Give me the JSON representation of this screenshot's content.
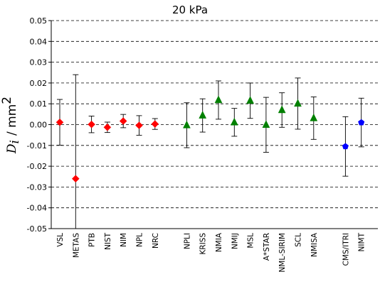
{
  "chart_data": {
    "type": "scatter",
    "title": "20 kPa",
    "ylabel_symbol": "D",
    "ylabel_subscript": "i",
    "ylabel_unit": "/ mm",
    "ylabel_unit_exponent": "2",
    "ylim": [
      -0.05,
      0.05
    ],
    "yticks": [
      -0.05,
      -0.04,
      -0.03,
      -0.02,
      -0.01,
      0.0,
      0.01,
      0.02,
      0.03,
      0.04,
      0.05
    ],
    "ytick_labels": [
      "-0.05",
      "-0.04",
      "-0.03",
      "-0.02",
      "-0.01",
      "0.00",
      "0.01",
      "0.02",
      "0.03",
      "0.04",
      "0.05"
    ],
    "grid": true,
    "colors": {
      "red": "#ff0000",
      "green": "#008000",
      "blue": "#0000ff"
    },
    "points": [
      {
        "label": "VSL",
        "slot": 0,
        "value": 0.0011,
        "err": 0.011,
        "marker": "diamond",
        "color": "#ff0000"
      },
      {
        "label": "METAS",
        "slot": 1,
        "value": -0.026,
        "err": 0.05,
        "marker": "diamond",
        "color": "#ff0000"
      },
      {
        "label": "PTB",
        "slot": 2,
        "value": 0.0001,
        "err": 0.004,
        "marker": "diamond",
        "color": "#ff0000"
      },
      {
        "label": "NIST",
        "slot": 3,
        "value": -0.0013,
        "err": 0.0025,
        "marker": "diamond",
        "color": "#ff0000"
      },
      {
        "label": "NIM",
        "slot": 4,
        "value": 0.0017,
        "err": 0.0032,
        "marker": "diamond",
        "color": "#ff0000"
      },
      {
        "label": "NPL",
        "slot": 5,
        "value": -0.0004,
        "err": 0.0047,
        "marker": "diamond",
        "color": "#ff0000"
      },
      {
        "label": "NRC",
        "slot": 6,
        "value": 0.0003,
        "err": 0.0026,
        "marker": "diamond",
        "color": "#ff0000"
      },
      {
        "label": "NPLI",
        "slot": 8,
        "value": -0.0003,
        "err": 0.0108,
        "marker": "triangle",
        "color": "#008000"
      },
      {
        "label": "KRISS",
        "slot": 9,
        "value": 0.0044,
        "err": 0.008,
        "marker": "triangle",
        "color": "#008000"
      },
      {
        "label": "NMIA",
        "slot": 10,
        "value": 0.0118,
        "err": 0.0092,
        "marker": "triangle",
        "color": "#008000"
      },
      {
        "label": "NMIJ",
        "slot": 11,
        "value": 0.0011,
        "err": 0.0067,
        "marker": "triangle",
        "color": "#008000"
      },
      {
        "label": "MSL",
        "slot": 12,
        "value": 0.0115,
        "err": 0.0085,
        "marker": "triangle",
        "color": "#008000"
      },
      {
        "label": "A*STAR",
        "slot": 13,
        "value": -0.0001,
        "err": 0.0132,
        "marker": "triangle",
        "color": "#008000"
      },
      {
        "label": "NML-SIRIM",
        "slot": 14,
        "value": 0.007,
        "err": 0.0083,
        "marker": "triangle",
        "color": "#008000"
      },
      {
        "label": "SCL",
        "slot": 15,
        "value": 0.0101,
        "err": 0.0123,
        "marker": "triangle",
        "color": "#008000"
      },
      {
        "label": "NMISA",
        "slot": 16,
        "value": 0.0031,
        "err": 0.0102,
        "marker": "triangle",
        "color": "#008000"
      },
      {
        "label": "CMS/ITRI",
        "slot": 18,
        "value": -0.0105,
        "err": 0.0143,
        "marker": "pentagon",
        "color": "#0000ff"
      },
      {
        "label": "NIMT",
        "slot": 19,
        "value": 0.001,
        "err": 0.0117,
        "marker": "pentagon",
        "color": "#0000ff"
      }
    ]
  }
}
